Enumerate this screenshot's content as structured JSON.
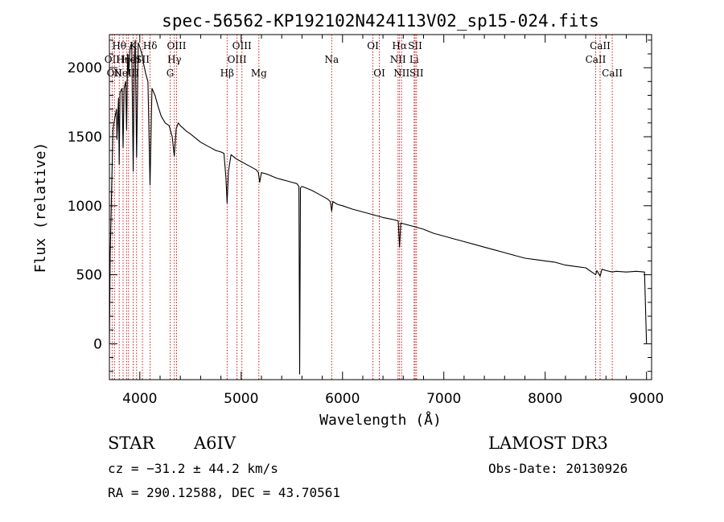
{
  "chart_data": {
    "type": "line",
    "title": "spec-56562-KP192102N424113V02_sp15-024.fits",
    "xlabel": "Wavelength (Å)",
    "ylabel": "Flux (relative)",
    "xlim": [
      3700,
      9050
    ],
    "ylim": [
      -260,
      2240
    ],
    "x_ticks": [
      4000,
      5000,
      6000,
      7000,
      8000,
      9000
    ],
    "x_tick_labels": [
      "4000",
      "5000",
      "6000",
      "7000",
      "8000",
      "9000"
    ],
    "y_ticks": [
      0,
      500,
      1000,
      1500,
      2000
    ],
    "y_tick_labels": [
      "0",
      "500",
      "1000",
      "1500",
      "2000"
    ],
    "grid": false,
    "series": [
      {
        "name": "spectrum",
        "x": [
          3700,
          3708,
          3720,
          3735,
          3750,
          3770,
          3775,
          3790,
          3797,
          3805,
          3825,
          3835,
          3845,
          3860,
          3870,
          3880,
          3890,
          3905,
          3920,
          3935,
          3945,
          3955,
          3968,
          3985,
          4000,
          4020,
          4040,
          4060,
          4080,
          4101,
          4120,
          4150,
          4180,
          4210,
          4250,
          4290,
          4320,
          4340,
          4360,
          4380,
          4400,
          4430,
          4460,
          4500,
          4550,
          4600,
          4650,
          4700,
          4750,
          4800,
          4830,
          4850,
          4861,
          4875,
          4900,
          4950,
          5000,
          5050,
          5100,
          5150,
          5170,
          5183,
          5200,
          5250,
          5300,
          5350,
          5400,
          5450,
          5500,
          5550,
          5570,
          5577,
          5585,
          5600,
          5650,
          5700,
          5750,
          5800,
          5850,
          5880,
          5893,
          5905,
          5950,
          6000,
          6100,
          6200,
          6300,
          6400,
          6500,
          6550,
          6563,
          6575,
          6600,
          6700,
          6800,
          6900,
          7000,
          7100,
          7200,
          7300,
          7400,
          7500,
          7600,
          7700,
          7800,
          7900,
          8000,
          8100,
          8200,
          8300,
          8400,
          8498,
          8510,
          8542,
          8560,
          8600,
          8662,
          8700,
          8800,
          8900,
          8980,
          9000
        ],
        "y": [
          0,
          650,
          1050,
          1550,
          1620,
          1700,
          1480,
          1780,
          1300,
          1820,
          1850,
          1420,
          1850,
          1900,
          1550,
          2100,
          1950,
          2150,
          2180,
          1250,
          2050,
          2200,
          1350,
          2180,
          2150,
          2100,
          2020,
          1950,
          1900,
          1150,
          1850,
          1800,
          1720,
          1650,
          1600,
          1580,
          1500,
          1360,
          1560,
          1600,
          1580,
          1560,
          1540,
          1520,
          1490,
          1460,
          1440,
          1420,
          1400,
          1390,
          1380,
          1200,
          1020,
          1250,
          1370,
          1340,
          1320,
          1300,
          1280,
          1260,
          1240,
          1170,
          1240,
          1230,
          1215,
          1200,
          1190,
          1180,
          1170,
          1160,
          1140,
          -220,
          1130,
          1140,
          1125,
          1110,
          1090,
          1070,
          1050,
          1030,
          960,
          1030,
          1010,
          1000,
          975,
          955,
          935,
          915,
          900,
          890,
          700,
          875,
          870,
          850,
          830,
          800,
          780,
          760,
          740,
          720,
          700,
          680,
          660,
          640,
          620,
          610,
          600,
          590,
          570,
          560,
          550,
          500,
          530,
          490,
          540,
          530,
          520,
          525,
          520,
          525,
          520,
          0
        ]
      }
    ],
    "line_markers": [
      {
        "wavelength": 3727,
        "label": "OII",
        "row": 2
      },
      {
        "wavelength": 3750,
        "label": "OII",
        "row": 3
      },
      {
        "wavelength": 3797,
        "label": "Hθ",
        "row": 1
      },
      {
        "wavelength": 3835,
        "label": "Hη",
        "row": 2
      },
      {
        "wavelength": 3869,
        "label": "NeIII",
        "row": 3
      },
      {
        "wavelength": 3889,
        "label": "He",
        "row": 2
      },
      {
        "wavelength": 3934,
        "label": "K",
        "row": 1
      },
      {
        "wavelength": 3968,
        "label": "H",
        "row": 2
      },
      {
        "wavelength": 4026,
        "label": "SII",
        "row": 2
      },
      {
        "wavelength": 4102,
        "label": "Hδ",
        "row": 1
      },
      {
        "wavelength": 4300,
        "label": "G",
        "row": 3
      },
      {
        "wavelength": 4341,
        "label": "Hγ",
        "row": 2
      },
      {
        "wavelength": 4363,
        "label": "OIII",
        "row": 1
      },
      {
        "wavelength": 4861,
        "label": "Hβ",
        "row": 3
      },
      {
        "wavelength": 4959,
        "label": "OIII",
        "row": 2
      },
      {
        "wavelength": 5007,
        "label": "OIII",
        "row": 1
      },
      {
        "wavelength": 5175,
        "label": "Mg",
        "row": 3
      },
      {
        "wavelength": 5893,
        "label": "Na",
        "row": 2
      },
      {
        "wavelength": 6300,
        "label": "OI",
        "row": 1
      },
      {
        "wavelength": 6364,
        "label": "OI",
        "row": 3
      },
      {
        "wavelength": 6548,
        "label": "NII",
        "row": 2
      },
      {
        "wavelength": 6563,
        "label": "Hα",
        "row": 1
      },
      {
        "wavelength": 6583,
        "label": "NII",
        "row": 3
      },
      {
        "wavelength": 6707,
        "label": "Li",
        "row": 2
      },
      {
        "wavelength": 6716,
        "label": "SII",
        "row": 1
      },
      {
        "wavelength": 6731,
        "label": "SII",
        "row": 3
      },
      {
        "wavelength": 8498,
        "label": "CaII",
        "row": 2
      },
      {
        "wavelength": 8542,
        "label": "CaII",
        "row": 1
      },
      {
        "wavelength": 8662,
        "label": "CaII",
        "row": 3
      }
    ]
  },
  "info": {
    "object_class": "STAR",
    "subclass": "A6IV",
    "survey": "LAMOST DR3",
    "redshift": "cz = −31.2 ± 44.2 km/s",
    "obs_date": "Obs-Date: 20130926",
    "coords": "RA = 290.12588, DEC =  43.70561"
  },
  "colors": {
    "line": "#000000",
    "marker": "#cc0000",
    "axes": "#000000",
    "background": "#ffffff"
  }
}
